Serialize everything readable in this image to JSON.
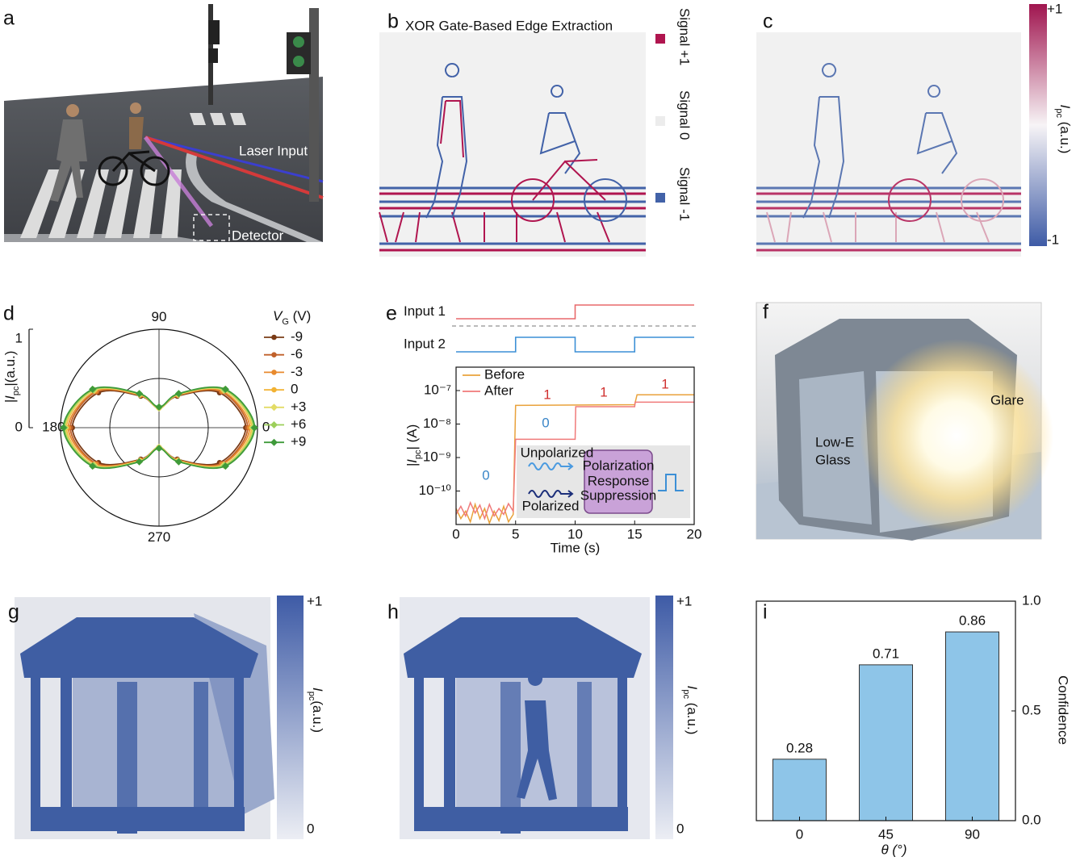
{
  "panels": {
    "a": {
      "label": "a",
      "annotations": [
        "Laser Input",
        "Detector"
      ]
    },
    "b": {
      "label": "b",
      "title": "XOR Gate-Based Edge Extraction",
      "legend": [
        {
          "name": "Signal +1",
          "color": "#b0154f"
        },
        {
          "name": "Signal 0",
          "color": "#ececec"
        },
        {
          "name": "Signal  -1",
          "color": "#4262a8"
        }
      ]
    },
    "c": {
      "label": "c",
      "colorbar": {
        "top": "+1",
        "bottom": "-1",
        "label": {
          "main": "I",
          "subscript": "pc",
          "unit": " (a.u.)"
        }
      }
    },
    "f": {
      "label": "f",
      "annotations": [
        "Glare",
        "Low-E",
        "Glass"
      ]
    },
    "g": {
      "label": "g",
      "colorbar": {
        "top": "+1",
        "bottom": "0",
        "label": {
          "main": "I",
          "subscript": "pc",
          "unit": "(a.u.)"
        }
      }
    },
    "h": {
      "label": "h",
      "colorbar": {
        "top": "+1",
        "bottom": "0",
        "label": {
          "main": "I",
          "subscript": "pc",
          "unit": " (a.u.)"
        }
      }
    }
  },
  "chart_data": [
    {
      "type": "polar",
      "label": "d",
      "theta": [
        0,
        30,
        60,
        90,
        120,
        150,
        180,
        210,
        240,
        270,
        300,
        330
      ],
      "rlim": [
        0,
        1
      ],
      "rticks": [
        0,
        1
      ],
      "rgrid": [
        0.5
      ],
      "thetaticks": [
        0,
        90,
        180,
        270
      ],
      "ylabel": {
        "main": "|I",
        "subscript": "pc",
        "unit": "|(a.u.)"
      },
      "legend_title": {
        "main": "V",
        "subscript": "G",
        "unit": " (V)"
      },
      "series": [
        {
          "name": "-9",
          "color": "#7a3b16",
          "marker": "circle",
          "values": [
            0.88,
            0.71,
            0.37,
            0.2,
            0.37,
            0.71,
            0.88,
            0.71,
            0.37,
            0.2,
            0.37,
            0.71
          ]
        },
        {
          "name": "-6",
          "color": "#c0602a",
          "marker": "circle",
          "values": [
            0.9,
            0.73,
            0.38,
            0.2,
            0.38,
            0.73,
            0.9,
            0.73,
            0.38,
            0.2,
            0.38,
            0.73
          ]
        },
        {
          "name": "-3",
          "color": "#e88a2e",
          "marker": "circle",
          "values": [
            0.92,
            0.74,
            0.38,
            0.2,
            0.38,
            0.74,
            0.92,
            0.74,
            0.38,
            0.2,
            0.38,
            0.74
          ]
        },
        {
          "name": "0",
          "color": "#f2b233",
          "marker": "circle",
          "values": [
            0.94,
            0.76,
            0.39,
            0.2,
            0.39,
            0.76,
            0.94,
            0.76,
            0.39,
            0.2,
            0.39,
            0.76
          ]
        },
        {
          "name": "+3",
          "color": "#e3dc66",
          "marker": "diamond",
          "values": [
            0.95,
            0.76,
            0.39,
            0.2,
            0.39,
            0.76,
            0.95,
            0.76,
            0.39,
            0.2,
            0.39,
            0.76
          ]
        },
        {
          "name": "+6",
          "color": "#9ccf5a",
          "marker": "diamond",
          "values": [
            0.96,
            0.77,
            0.4,
            0.21,
            0.4,
            0.77,
            0.96,
            0.77,
            0.4,
            0.21,
            0.4,
            0.77
          ]
        },
        {
          "name": "+9",
          "color": "#3f9a3a",
          "marker": "diamond",
          "values": [
            0.97,
            0.78,
            0.4,
            0.21,
            0.4,
            0.78,
            0.97,
            0.78,
            0.4,
            0.21,
            0.4,
            0.78
          ]
        }
      ]
    },
    {
      "type": "line",
      "label": "e",
      "ylog": true,
      "xlim": [
        0,
        20
      ],
      "xticks": [
        0,
        5,
        10,
        15,
        20
      ],
      "ylim": [
        1e-11,
        5e-07
      ],
      "yticks": [
        {
          "value": 1e-10,
          "label": "10⁻¹⁰"
        },
        {
          "value": 1e-09,
          "label": "10⁻⁹"
        },
        {
          "value": 1e-08,
          "label": "10⁻⁸"
        },
        {
          "value": 1e-07,
          "label": "10⁻⁷"
        }
      ],
      "xlabel": "Time (s)",
      "ylabel": {
        "main": "|I",
        "subscript": "pc",
        "unit": "| (A)"
      },
      "inputs": [
        {
          "name": "Input 1",
          "color": "#e8696b",
          "x": [
            0,
            10,
            10,
            20
          ],
          "values": [
            0,
            0,
            1,
            1
          ]
        },
        {
          "name": "Input 2",
          "color": "#3c8fd6",
          "x": [
            0,
            5,
            5,
            10,
            10,
            15,
            15,
            20
          ],
          "values": [
            0,
            0,
            1,
            1,
            0,
            0,
            1,
            1
          ]
        }
      ],
      "series": [
        {
          "name": "Before",
          "color": "#e9a23b",
          "x": [
            0,
            0.4,
            0.8,
            1.2,
            1.6,
            2,
            2.4,
            2.8,
            3.2,
            3.6,
            4,
            4.4,
            4.8,
            5,
            15,
            15.2,
            20
          ],
          "values": [
            3e-11,
            1.5e-11,
            2.5e-11,
            1.2e-11,
            4e-11,
            1.5e-11,
            3e-11,
            1.1e-11,
            2.5e-11,
            1.3e-11,
            3.5e-11,
            1.2e-11,
            2e-11,
            3.6e-08,
            3.8e-08,
            7.5e-08,
            7.5e-08
          ]
        },
        {
          "name": "After",
          "color": "#f07a7a",
          "x": [
            0,
            0.4,
            0.8,
            1.2,
            1.6,
            2,
            2.4,
            2.8,
            3.2,
            3.6,
            4,
            4.4,
            4.8,
            5,
            10,
            10.05,
            15,
            15.05,
            20
          ],
          "values": [
            2e-11,
            3.5e-11,
            1.8e-11,
            4.5e-11,
            2.2e-11,
            3.8e-11,
            1.5e-11,
            4e-11,
            1.8e-11,
            3e-11,
            2e-11,
            4.2e-11,
            2.5e-11,
            3.5e-09,
            3.5e-09,
            3.3e-08,
            3.3e-08,
            4.5e-08,
            4.5e-08
          ]
        }
      ],
      "annotations": [
        {
          "text": "0",
          "color": "#3a86c8"
        },
        {
          "text": "0",
          "color": "#3a86c8"
        },
        {
          "text": "1",
          "color": "#d0302f"
        },
        {
          "text": "1",
          "color": "#d0302f"
        },
        {
          "text": "1",
          "color": "#d0302f"
        }
      ],
      "inset": [
        "Unpolarized",
        "Polarized",
        "Polarization",
        "Response",
        "Suppression"
      ]
    },
    {
      "type": "bar",
      "label": "i",
      "color": "#8ec5e8",
      "categories": [
        "0",
        "45",
        "90"
      ],
      "values": [
        0.28,
        0.71,
        0.86
      ],
      "ylim": [
        0,
        1
      ],
      "yticks": [
        {
          "value": 0,
          "label": "0.0"
        },
        {
          "value": 0.5,
          "label": "0.5"
        },
        {
          "value": 1,
          "label": "1.0"
        }
      ],
      "xlabel": "θ (°)",
      "ylabel": "Confidence"
    }
  ]
}
